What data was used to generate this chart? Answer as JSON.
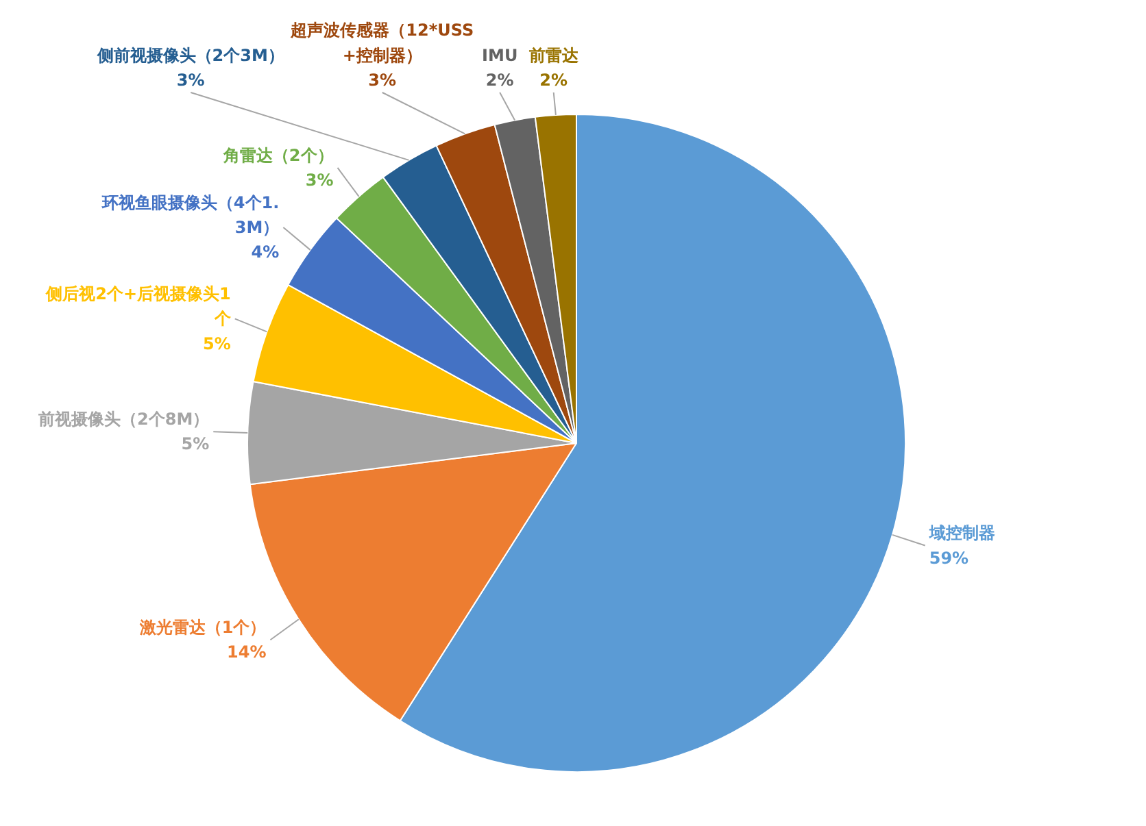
{
  "chart_data": {
    "type": "pie",
    "categories": [
      "域控制器",
      "激光雷达（1个）",
      "前视摄像头（2个8M）",
      "侧后视2个+后视摄像头1个",
      "环视鱼眼摄像头（4个1.3M）",
      "角雷达（2个）",
      "侧前视摄像头（2个3M）",
      "超声波传感器（12*USS+控制器）",
      "IMU",
      "前雷达"
    ],
    "values": [
      59,
      14,
      5,
      5,
      4,
      3,
      3,
      3,
      2,
      2
    ],
    "value_labels": [
      "59%",
      "14%",
      "5%",
      "5%",
      "4%",
      "3%",
      "3%",
      "3%",
      "2%",
      "2%"
    ],
    "colors": [
      "#5b9bd5",
      "#ed7d31",
      "#a5a5a5",
      "#ffc000",
      "#4472c4",
      "#70ad47",
      "#255e91",
      "#9e480e",
      "#636363",
      "#997300"
    ]
  }
}
